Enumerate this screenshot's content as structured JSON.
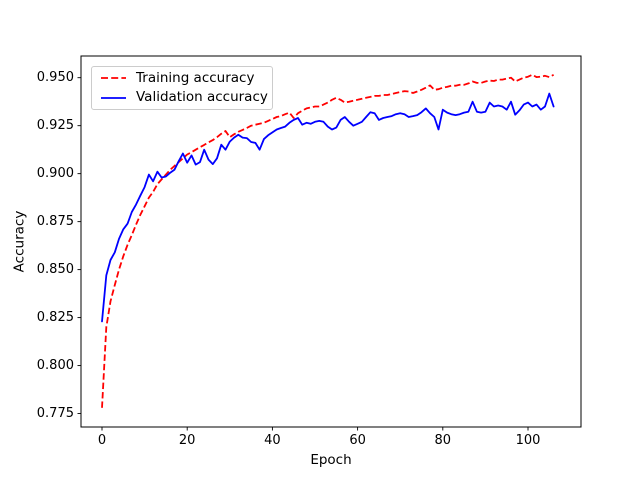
{
  "figure": {
    "background": "#ffffff"
  },
  "chart_data": {
    "type": "line",
    "title": "",
    "xlabel": "Epoch",
    "ylabel": "Accuracy",
    "xlim": [
      -4.93,
      112.44
    ],
    "ylim": [
      0.768,
      0.9613
    ],
    "xticks": [
      0,
      20,
      40,
      60,
      80,
      100
    ],
    "yticks": [
      0.775,
      0.8,
      0.825,
      0.85,
      0.875,
      0.9,
      0.925,
      0.95
    ],
    "grid": false,
    "legend_position": "upper left",
    "x_start": 0,
    "x_step": 1,
    "series": [
      {
        "name": "Training accuracy",
        "color": "#ff0000",
        "style": "dashed",
        "dasharray": "6.4,3",
        "values": [
          0.778,
          0.82,
          0.8335,
          0.842,
          0.85,
          0.857,
          0.863,
          0.868,
          0.8735,
          0.8785,
          0.883,
          0.8875,
          0.8905,
          0.8945,
          0.897,
          0.8995,
          0.902,
          0.904,
          0.906,
          0.908,
          0.91,
          0.9112,
          0.9125,
          0.9138,
          0.915,
          0.9163,
          0.9175,
          0.919,
          0.9208,
          0.9222,
          0.919,
          0.9205,
          0.9218,
          0.9228,
          0.9238,
          0.925,
          0.9255,
          0.926,
          0.9265,
          0.9275,
          0.9285,
          0.9295,
          0.93,
          0.931,
          0.9318,
          0.929,
          0.9315,
          0.9328,
          0.934,
          0.9345,
          0.935,
          0.935,
          0.936,
          0.937,
          0.9385,
          0.9395,
          0.9385,
          0.937,
          0.9375,
          0.938,
          0.9385,
          0.939,
          0.9395,
          0.94,
          0.9405,
          0.9405,
          0.941,
          0.941,
          0.9415,
          0.942,
          0.9425,
          0.943,
          0.9428,
          0.942,
          0.9428,
          0.9437,
          0.9448,
          0.946,
          0.9437,
          0.944,
          0.9448,
          0.9452,
          0.9458,
          0.9458,
          0.9463,
          0.9463,
          0.947,
          0.948,
          0.9473,
          0.9473,
          0.948,
          0.9485,
          0.9483,
          0.949,
          0.949,
          0.9495,
          0.95,
          0.948,
          0.949,
          0.95,
          0.9505,
          0.9515,
          0.9503,
          0.9505,
          0.951,
          0.9503,
          0.9515
        ]
      },
      {
        "name": "Validation accuracy",
        "color": "#0000ff",
        "style": "solid",
        "dasharray": "",
        "values": [
          0.823,
          0.847,
          0.855,
          0.859,
          0.866,
          0.871,
          0.874,
          0.88,
          0.884,
          0.8885,
          0.893,
          0.8995,
          0.896,
          0.901,
          0.898,
          0.8985,
          0.9005,
          0.902,
          0.9065,
          0.9105,
          0.9057,
          0.9095,
          0.9047,
          0.906,
          0.9125,
          0.9073,
          0.905,
          0.908,
          0.9151,
          0.9125,
          0.9167,
          0.9188,
          0.9203,
          0.9188,
          0.9185,
          0.9165,
          0.916,
          0.9125,
          0.918,
          0.92,
          0.9215,
          0.923,
          0.9238,
          0.9245,
          0.9265,
          0.928,
          0.929,
          0.9255,
          0.9265,
          0.926,
          0.927,
          0.9275,
          0.927,
          0.9245,
          0.923,
          0.924,
          0.928,
          0.9295,
          0.927,
          0.925,
          0.926,
          0.927,
          0.9295,
          0.932,
          0.9315,
          0.928,
          0.929,
          0.9295,
          0.93,
          0.931,
          0.9315,
          0.931,
          0.9295,
          0.93,
          0.9305,
          0.932,
          0.934,
          0.9315,
          0.9295,
          0.923,
          0.9333,
          0.9318,
          0.931,
          0.9305,
          0.931,
          0.9318,
          0.9323,
          0.9375,
          0.9323,
          0.9318,
          0.9323,
          0.937,
          0.935,
          0.9355,
          0.935,
          0.9333,
          0.9375,
          0.9307,
          0.933,
          0.936,
          0.937,
          0.935,
          0.936,
          0.9333,
          0.935,
          0.9417,
          0.935
        ]
      }
    ]
  }
}
